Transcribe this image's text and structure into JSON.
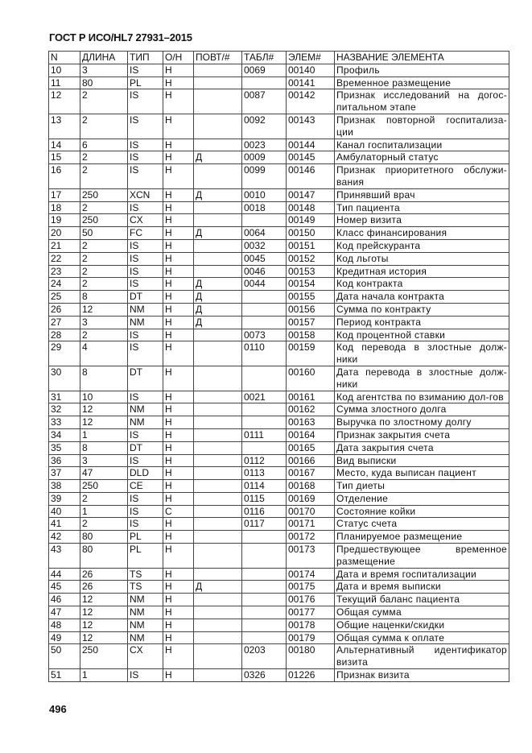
{
  "header": {
    "title": "ГОСТ Р ИСО/HL7 27931–2015"
  },
  "table": {
    "columns": [
      "N",
      "ДЛИНА",
      "ТИП",
      "О/Н",
      "ПОВТ/#",
      "ТАБЛ#",
      "ЭЛЕМ#",
      "НАЗВАНИЕ ЭЛЕМЕНТА"
    ],
    "rows": [
      [
        "10",
        "3",
        "IS",
        "Н",
        "",
        "0069",
        "00140",
        "Профиль"
      ],
      [
        "11",
        "80",
        "PL",
        "Н",
        "",
        "",
        "00141",
        "Временное размещение"
      ],
      [
        "12",
        "2",
        "IS",
        "Н",
        "",
        "0087",
        "00142",
        "Признак исследований на догос-питальном этапе"
      ],
      [
        "13",
        "2",
        "IS",
        "Н",
        "",
        "0092",
        "00143",
        "Признак повторной госпитализа-ции"
      ],
      [
        "14",
        "6",
        "IS",
        "Н",
        "",
        "0023",
        "00144",
        "Канал госпитализации"
      ],
      [
        "15",
        "2",
        "IS",
        "Н",
        "Д",
        "0009",
        "00145",
        "Амбулаторный статус"
      ],
      [
        "16",
        "2",
        "IS",
        "Н",
        "",
        "0099",
        "00146",
        "Признак приоритетного обслужи-вания"
      ],
      [
        "17",
        "250",
        "XCN",
        "Н",
        "Д",
        "0010",
        "00147",
        "Принявший врач"
      ],
      [
        "18",
        "2",
        "IS",
        "Н",
        "",
        "0018",
        "00148",
        "Тип пациента"
      ],
      [
        "19",
        "250",
        "CX",
        "Н",
        "",
        "",
        "00149",
        "Номер визита"
      ],
      [
        "20",
        "50",
        "FC",
        "Н",
        "Д",
        "0064",
        "00150",
        "Класс финансирования"
      ],
      [
        "21",
        "2",
        "IS",
        "Н",
        "",
        "0032",
        "00151",
        "Код прейскуранта"
      ],
      [
        "22",
        "2",
        "IS",
        "Н",
        "",
        "0045",
        "00152",
        "Код льготы"
      ],
      [
        "23",
        "2",
        "IS",
        "Н",
        "",
        "0046",
        "00153",
        "Кредитная история"
      ],
      [
        "24",
        "2",
        "IS",
        "Н",
        "Д",
        "0044",
        "00154",
        "Код контракта"
      ],
      [
        "25",
        "8",
        "DT",
        "Н",
        "Д",
        "",
        "00155",
        "Дата начала контракта"
      ],
      [
        "26",
        "12",
        "NM",
        "Н",
        "Д",
        "",
        "00156",
        "Сумма по контракту"
      ],
      [
        "27",
        "3",
        "NM",
        "Н",
        "Д",
        "",
        "00157",
        "Период контракта"
      ],
      [
        "28",
        "2",
        "IS",
        "Н",
        "",
        "0073",
        "00158",
        "Код процентной ставки"
      ],
      [
        "29",
        "4",
        "IS",
        "Н",
        "",
        "0110",
        "00159",
        "Код перевода в злостные долж-ники"
      ],
      [
        "30",
        "8",
        "DT",
        "Н",
        "",
        "",
        "00160",
        "Дата перевода в злостные долж-ники"
      ],
      [
        "31",
        "10",
        "IS",
        "Н",
        "",
        "0021",
        "00161",
        "Код агентства по взиманию дол-гов"
      ],
      [
        "32",
        "12",
        "NM",
        "Н",
        "",
        "",
        "00162",
        "Сумма злостного долга"
      ],
      [
        "33",
        "12",
        "NM",
        "Н",
        "",
        "",
        "00163",
        "Выручка по злостному долгу"
      ],
      [
        "34",
        "1",
        "IS",
        "Н",
        "",
        "0111",
        "00164",
        "Признак закрытия счета"
      ],
      [
        "35",
        "8",
        "DT",
        "Н",
        "",
        "",
        "00165",
        "Дата закрытия счета"
      ],
      [
        "36",
        "3",
        "IS",
        "Н",
        "",
        "0112",
        "00166",
        "Вид выписки"
      ],
      [
        "37",
        "47",
        "DLD",
        "Н",
        "",
        "0113",
        "00167",
        "Место, куда выписан пациент"
      ],
      [
        "38",
        "250",
        "CE",
        "Н",
        "",
        "0114",
        "00168",
        "Тип диеты"
      ],
      [
        "39",
        "2",
        "IS",
        "Н",
        "",
        "0115",
        "00169",
        "Отделение"
      ],
      [
        "40",
        "1",
        "IS",
        "С",
        "",
        "0116",
        "00170",
        "Состояние койки"
      ],
      [
        "41",
        "2",
        "IS",
        "Н",
        "",
        "0117",
        "00171",
        "Статус счета"
      ],
      [
        "42",
        "80",
        "PL",
        "Н",
        "",
        "",
        "00172",
        "Планируемое размещение"
      ],
      [
        "43",
        "80",
        "PL",
        "Н",
        "",
        "",
        "00173",
        "Предшествующее временное размещение"
      ],
      [
        "44",
        "26",
        "TS",
        "Н",
        "",
        "",
        "00174",
        "Дата и время госпитализации"
      ],
      [
        "45",
        "26",
        "TS",
        "Н",
        "Д",
        "",
        "00175",
        "Дата и время выписки"
      ],
      [
        "46",
        "12",
        "NM",
        "Н",
        "",
        "",
        "00176",
        "Текущий баланс пациента"
      ],
      [
        "47",
        "12",
        "NM",
        "Н",
        "",
        "",
        "00177",
        "Общая сумма"
      ],
      [
        "48",
        "12",
        "NM",
        "Н",
        "",
        "",
        "00178",
        "Общие наценки/скидки"
      ],
      [
        "49",
        "12",
        "NM",
        "Н",
        "",
        "",
        "00179",
        "Общая сумма к оплате"
      ],
      [
        "50",
        "250",
        "CX",
        "Н",
        "",
        "0203",
        "00180",
        "Альтернативный идентификатор визита"
      ],
      [
        "51",
        "1",
        "IS",
        "Н",
        "",
        "0326",
        "01226",
        "Признак визита"
      ]
    ]
  },
  "footer": {
    "page_number": "496"
  }
}
